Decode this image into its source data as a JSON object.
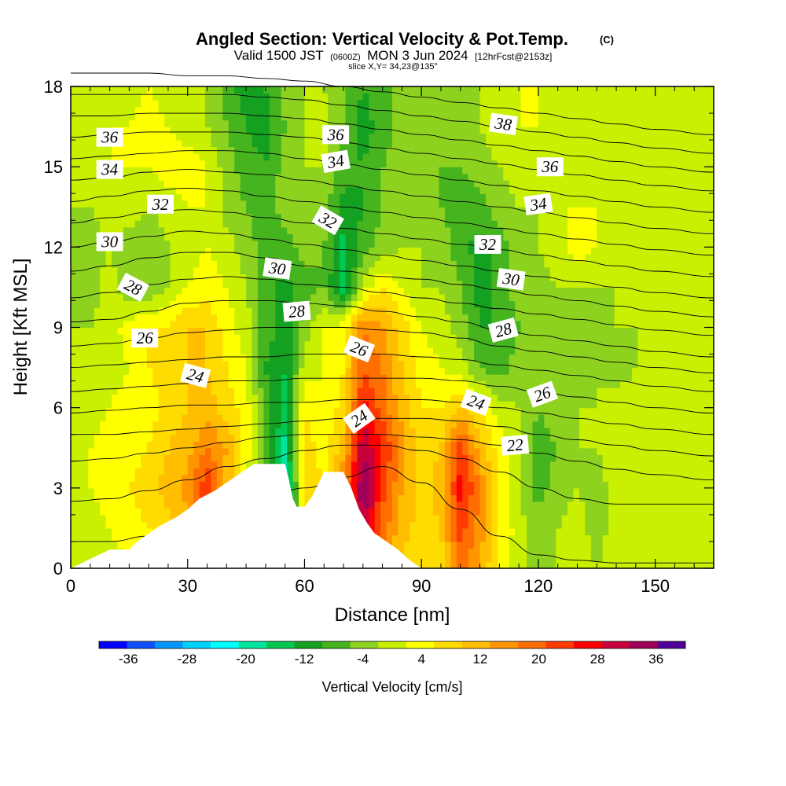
{
  "chart_data": {
    "type": "heatmap",
    "title": "Angled Section: Vertical Velocity & Pot.Temp.",
    "title_unit": "(C)",
    "subtitle_parts": [
      "Valid 1500 JST",
      "(0600Z)",
      "MON 3 Jun 2024",
      "[12hrFcst@2153z]"
    ],
    "slice_label": "slice X,Y= 34,23@135°",
    "xlabel": "Distance [nm]",
    "ylabel": "Height [Kft MSL]",
    "xlim": [
      0,
      165
    ],
    "ylim": [
      0,
      18
    ],
    "x_ticks": [
      0,
      30,
      60,
      90,
      120,
      150
    ],
    "y_ticks": [
      0,
      3,
      6,
      9,
      12,
      15,
      18
    ],
    "colorbar": {
      "label": "Vertical Velocity [cm/s]",
      "tick_labels": [
        "-36",
        "-28",
        "-20",
        "-12",
        "-4",
        "4",
        "12",
        "20",
        "28",
        "36"
      ],
      "bounds": [
        -40,
        40
      ],
      "step": 4,
      "colors": [
        "#0000ff",
        "#0f50ff",
        "#0096ff",
        "#00d2ff",
        "#00ffff",
        "#00e6a0",
        "#00c850",
        "#14a020",
        "#46b41e",
        "#8cd21e",
        "#c8f000",
        "#ffff00",
        "#ffdc00",
        "#ffbe00",
        "#ff9600",
        "#ff6e00",
        "#ff3c00",
        "#ff0000",
        "#c8003c",
        "#a0005a",
        "#500096"
      ]
    },
    "shading": {
      "field": "vertical velocity (cm/s)",
      "grid_x": [
        0,
        5,
        10,
        15,
        20,
        25,
        30,
        35,
        40,
        45,
        50,
        55,
        60,
        65,
        70,
        75,
        80,
        85,
        90,
        95,
        100,
        105,
        110,
        115,
        120,
        125,
        130,
        135,
        140,
        145,
        150,
        155,
        160,
        165
      ],
      "grid_y": [
        0,
        1.5,
        3,
        4.5,
        6,
        7.5,
        9,
        10.5,
        12,
        13.5,
        15,
        16.5,
        18
      ],
      "values": [
        [
          1,
          2,
          2,
          4,
          4,
          6,
          12,
          24,
          8,
          2,
          -2,
          -8,
          -6,
          2,
          22,
          28,
          16,
          10,
          10,
          10,
          22,
          16,
          6,
          2,
          -2,
          0,
          2,
          0,
          2,
          1,
          0,
          0,
          0,
          0
        ],
        [
          0,
          2,
          4,
          6,
          8,
          10,
          14,
          26,
          10,
          4,
          -2,
          -16,
          6,
          10,
          24,
          36,
          22,
          14,
          10,
          12,
          26,
          18,
          8,
          2,
          -2,
          0,
          2,
          -2,
          2,
          0,
          2,
          2,
          0,
          0
        ],
        [
          2,
          4,
          6,
          8,
          10,
          14,
          18,
          28,
          14,
          4,
          -2,
          -24,
          12,
          8,
          20,
          40,
          26,
          16,
          10,
          14,
          30,
          20,
          8,
          0,
          -6,
          -2,
          0,
          -2,
          2,
          4,
          2,
          4,
          2,
          2
        ],
        [
          2,
          4,
          6,
          6,
          8,
          12,
          14,
          20,
          16,
          6,
          -4,
          -18,
          10,
          6,
          14,
          36,
          28,
          18,
          10,
          12,
          26,
          14,
          6,
          0,
          -6,
          -4,
          0,
          0,
          2,
          2,
          2,
          4,
          2,
          2
        ],
        [
          0,
          2,
          4,
          6,
          6,
          10,
          12,
          14,
          10,
          6,
          -6,
          -14,
          8,
          4,
          10,
          30,
          22,
          14,
          8,
          8,
          12,
          8,
          2,
          0,
          -4,
          -2,
          0,
          0,
          2,
          2,
          0,
          2,
          0,
          0
        ],
        [
          0,
          2,
          2,
          4,
          8,
          10,
          12,
          12,
          8,
          4,
          -8,
          -12,
          2,
          4,
          8,
          24,
          20,
          12,
          6,
          4,
          2,
          -4,
          -6,
          -2,
          0,
          -4,
          -2,
          0,
          -2,
          0,
          0,
          0,
          0,
          0
        ],
        [
          0,
          0,
          2,
          6,
          8,
          8,
          12,
          12,
          6,
          2,
          -6,
          -10,
          -2,
          4,
          6,
          20,
          16,
          10,
          4,
          2,
          -2,
          -8,
          -8,
          -4,
          -2,
          -2,
          0,
          -2,
          0,
          0,
          0,
          0,
          0,
          0
        ],
        [
          -2,
          -2,
          2,
          -4,
          -4,
          0,
          4,
          6,
          4,
          0,
          -6,
          -10,
          -6,
          -4,
          -16,
          2,
          8,
          4,
          0,
          0,
          -4,
          -10,
          -6,
          -2,
          -2,
          0,
          0,
          0,
          0,
          0,
          0,
          0,
          0,
          0
        ],
        [
          -2,
          -2,
          0,
          -2,
          -4,
          0,
          2,
          4,
          2,
          -2,
          -6,
          -6,
          -2,
          -4,
          -14,
          -6,
          -2,
          0,
          0,
          -2,
          -6,
          -10,
          -6,
          -2,
          0,
          2,
          6,
          4,
          0,
          0,
          0,
          0,
          0,
          0
        ],
        [
          0,
          0,
          2,
          2,
          0,
          2,
          4,
          4,
          -2,
          -4,
          -6,
          -2,
          0,
          -2,
          -10,
          -8,
          -4,
          -2,
          -2,
          -4,
          -6,
          -6,
          -2,
          0,
          0,
          4,
          4,
          4,
          0,
          0,
          0,
          0,
          0,
          0
        ],
        [
          0,
          2,
          4,
          4,
          4,
          6,
          6,
          4,
          -2,
          -6,
          -8,
          -2,
          0,
          0,
          -6,
          -8,
          -4,
          -2,
          -2,
          -4,
          -4,
          -2,
          0,
          2,
          2,
          2,
          2,
          0,
          0,
          0,
          0,
          0,
          0,
          0
        ],
        [
          2,
          2,
          4,
          4,
          6,
          4,
          2,
          0,
          -4,
          -8,
          -10,
          -4,
          0,
          2,
          -4,
          -10,
          -6,
          -2,
          -2,
          -2,
          -2,
          0,
          2,
          4,
          4,
          2,
          0,
          0,
          0,
          0,
          0,
          0,
          0,
          0
        ],
        [
          0,
          2,
          2,
          2,
          4,
          2,
          0,
          0,
          -6,
          -10,
          -8,
          -2,
          0,
          0,
          -4,
          -8,
          -6,
          -2,
          0,
          0,
          0,
          0,
          2,
          4,
          4,
          2,
          0,
          0,
          0,
          2,
          0,
          0,
          0,
          0
        ]
      ]
    },
    "terrain": {
      "x": [
        0,
        10,
        15,
        17,
        20,
        23,
        27,
        30,
        33,
        37,
        40,
        43,
        47,
        50,
        53,
        55,
        56,
        57,
        58,
        60,
        62,
        65,
        67,
        70,
        72,
        74,
        76,
        78,
        81,
        84,
        87,
        90
      ],
      "y": [
        0,
        0.7,
        0.7,
        1.0,
        1.3,
        1.6,
        1.9,
        2.2,
        2.6,
        2.9,
        3.2,
        3.5,
        3.9,
        3.9,
        3.9,
        3.9,
        3.3,
        2.6,
        2.3,
        2.3,
        2.7,
        3.6,
        3.6,
        3.6,
        3.0,
        2.2,
        1.7,
        1.3,
        1.0,
        0.7,
        0.3,
        0
      ]
    },
    "contours": {
      "field": "potential temperature (C)",
      "x": [
        0,
        10,
        20,
        30,
        40,
        50,
        60,
        70,
        80,
        90,
        100,
        110,
        120,
        130,
        140,
        150,
        165
      ],
      "levels": [
        {
          "value": 20,
          "y": [
            1.0,
            1.0,
            1.2,
            1.5,
            2.0,
            2.6,
            3.0,
            3.4,
            3.8,
            3.2,
            2.2,
            1.2,
            0.5,
            0.3,
            0.2,
            0.2,
            0.2
          ]
        },
        {
          "value": 21,
          "y": [
            2.5,
            2.6,
            2.9,
            3.3,
            3.8,
            4.1,
            4.4,
            4.6,
            4.6,
            4.4,
            4.1,
            3.6,
            3.0,
            2.6,
            2.4,
            2.4,
            2.4
          ]
        },
        {
          "value": 22,
          "y": [
            4.0,
            4.1,
            4.3,
            4.5,
            4.7,
            4.9,
            5.0,
            5.0,
            5.0,
            4.9,
            4.8,
            4.6,
            4.3,
            4.0,
            3.7,
            3.5,
            3.3
          ]
        },
        {
          "value": 23,
          "y": [
            5.0,
            5.0,
            5.1,
            5.2,
            5.3,
            5.4,
            5.5,
            5.6,
            5.6,
            5.6,
            5.5,
            5.3,
            5.0,
            4.8,
            4.6,
            4.4,
            4.2
          ]
        },
        {
          "value": 24,
          "y": [
            5.8,
            5.9,
            6.0,
            6.1,
            6.1,
            6.2,
            6.2,
            6.3,
            6.3,
            6.3,
            6.2,
            6.0,
            5.8,
            5.6,
            5.4,
            5.2,
            5.0
          ]
        },
        {
          "value": 25,
          "y": [
            6.6,
            6.7,
            6.8,
            6.9,
            7.0,
            7.0,
            7.1,
            7.1,
            7.1,
            7.1,
            7.0,
            6.8,
            6.6,
            6.4,
            6.2,
            6.0,
            5.8
          ]
        },
        {
          "value": 26,
          "y": [
            7.5,
            7.6,
            7.7,
            7.8,
            7.9,
            7.9,
            8.0,
            8.0,
            8.0,
            7.9,
            7.8,
            7.6,
            7.4,
            7.2,
            7.0,
            6.8,
            6.6
          ]
        },
        {
          "value": 27,
          "y": [
            8.3,
            8.4,
            8.6,
            8.8,
            8.9,
            9.0,
            9.0,
            9.0,
            8.9,
            8.8,
            8.6,
            8.3,
            8.1,
            7.9,
            7.7,
            7.5,
            7.3
          ]
        },
        {
          "value": 28,
          "y": [
            9.2,
            9.3,
            9.6,
            9.9,
            10.0,
            10.0,
            9.9,
            9.8,
            9.6,
            9.4,
            9.2,
            8.9,
            8.7,
            8.5,
            8.3,
            8.1,
            7.9
          ]
        },
        {
          "value": 29,
          "y": [
            10.1,
            10.3,
            10.6,
            10.8,
            10.9,
            10.8,
            10.6,
            10.5,
            10.3,
            10.1,
            9.9,
            9.7,
            9.5,
            9.3,
            9.1,
            8.9,
            8.7
          ]
        },
        {
          "value": 30,
          "y": [
            11.1,
            11.3,
            11.6,
            11.8,
            11.8,
            11.6,
            11.3,
            11.1,
            10.9,
            10.8,
            10.6,
            10.4,
            10.2,
            10.0,
            9.8,
            9.6,
            9.4
          ]
        },
        {
          "value": 31,
          "y": [
            12.0,
            12.2,
            12.4,
            12.6,
            12.5,
            12.3,
            12.1,
            11.9,
            11.7,
            11.5,
            11.3,
            11.1,
            10.9,
            10.7,
            10.5,
            10.3,
            10.1
          ]
        },
        {
          "value": 32,
          "y": [
            12.9,
            13.1,
            13.3,
            13.4,
            13.3,
            13.1,
            12.9,
            12.7,
            12.5,
            12.3,
            12.1,
            11.9,
            11.7,
            11.5,
            11.3,
            11.1,
            10.9
          ]
        },
        {
          "value": 33,
          "y": [
            13.7,
            13.9,
            14.1,
            14.2,
            14.1,
            13.9,
            13.7,
            13.5,
            13.3,
            13.1,
            12.9,
            12.7,
            12.5,
            12.3,
            12.1,
            11.9,
            11.7
          ]
        },
        {
          "value": 34,
          "y": [
            14.5,
            14.6,
            14.8,
            14.9,
            14.8,
            14.7,
            14.5,
            14.3,
            14.1,
            13.9,
            13.7,
            13.5,
            13.3,
            13.1,
            12.9,
            12.7,
            12.5
          ]
        },
        {
          "value": 35,
          "y": [
            15.3,
            15.4,
            15.5,
            15.6,
            15.6,
            15.5,
            15.3,
            15.1,
            14.9,
            14.7,
            14.5,
            14.3,
            14.1,
            13.9,
            13.7,
            13.5,
            13.3
          ]
        },
        {
          "value": 36,
          "y": [
            16.1,
            16.2,
            16.3,
            16.3,
            16.3,
            16.2,
            16.1,
            15.9,
            15.7,
            15.5,
            15.3,
            15.1,
            14.9,
            14.7,
            14.5,
            14.3,
            14.1
          ]
        },
        {
          "value": 37,
          "y": [
            16.9,
            16.9,
            17.0,
            17.0,
            17.0,
            16.9,
            16.8,
            16.6,
            16.4,
            16.2,
            16.0,
            15.8,
            15.6,
            15.4,
            15.2,
            15.0,
            14.8
          ]
        },
        {
          "value": 38,
          "y": [
            17.7,
            17.7,
            17.7,
            17.7,
            17.7,
            17.6,
            17.5,
            17.3,
            17.1,
            16.9,
            16.7,
            16.5,
            16.3,
            16.1,
            15.9,
            15.7,
            15.5
          ]
        },
        {
          "value": 39,
          "y": [
            18.5,
            18.5,
            18.5,
            18.4,
            18.4,
            18.3,
            18.2,
            18.0,
            17.8,
            17.6,
            17.4,
            17.2,
            17.0,
            16.8,
            16.6,
            16.4,
            16.2
          ]
        }
      ],
      "labels": [
        {
          "text": "36",
          "x": 10,
          "y": 16.1,
          "angle": 0
        },
        {
          "text": "36",
          "x": 68,
          "y": 16.2,
          "angle": 0
        },
        {
          "text": "38",
          "x": 111,
          "y": 16.6,
          "angle": 8
        },
        {
          "text": "34",
          "x": 10,
          "y": 14.9,
          "angle": 0
        },
        {
          "text": "34",
          "x": 68,
          "y": 15.2,
          "angle": -10
        },
        {
          "text": "36",
          "x": 123,
          "y": 15.0,
          "angle": 0
        },
        {
          "text": "32",
          "x": 23,
          "y": 13.6,
          "angle": 0
        },
        {
          "text": "32",
          "x": 66,
          "y": 13.0,
          "angle": 30
        },
        {
          "text": "34",
          "x": 120,
          "y": 13.6,
          "angle": -8
        },
        {
          "text": "30",
          "x": 10,
          "y": 12.2,
          "angle": 0
        },
        {
          "text": "32",
          "x": 107,
          "y": 12.1,
          "angle": 0
        },
        {
          "text": "28",
          "x": 16,
          "y": 10.5,
          "angle": 28
        },
        {
          "text": "30",
          "x": 53,
          "y": 11.2,
          "angle": 8
        },
        {
          "text": "30",
          "x": 113,
          "y": 10.8,
          "angle": 8
        },
        {
          "text": "28",
          "x": 58,
          "y": 9.6,
          "angle": -5
        },
        {
          "text": "28",
          "x": 111,
          "y": 8.9,
          "angle": -15
        },
        {
          "text": "26",
          "x": 19,
          "y": 8.6,
          "angle": 0
        },
        {
          "text": "26",
          "x": 74,
          "y": 8.2,
          "angle": 22
        },
        {
          "text": "24",
          "x": 32,
          "y": 7.2,
          "angle": 15
        },
        {
          "text": "26",
          "x": 121,
          "y": 6.5,
          "angle": -20
        },
        {
          "text": "24",
          "x": 104,
          "y": 6.2,
          "angle": 20
        },
        {
          "text": "24",
          "x": 74,
          "y": 5.6,
          "angle": -35
        },
        {
          "text": "22",
          "x": 114,
          "y": 4.6,
          "angle": -5
        }
      ]
    }
  }
}
